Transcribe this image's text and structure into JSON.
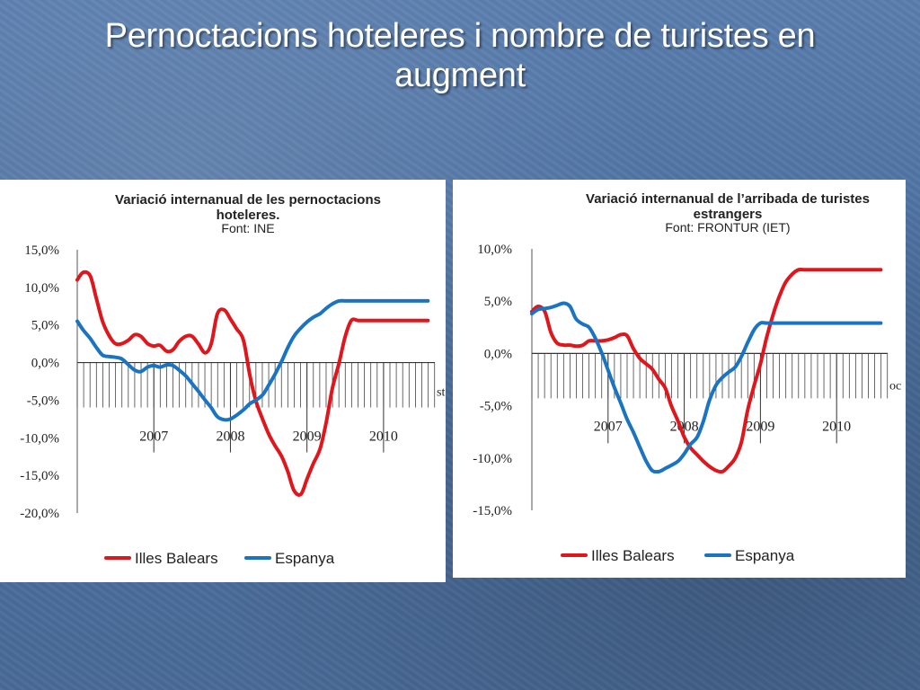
{
  "slide": {
    "title": "Pernoctacions  hoteleres i nombre de turistes en augment"
  },
  "colors": {
    "series_red": "#e0161d",
    "series_blue": "#1a74c2",
    "background": "#4c6f9f"
  },
  "chart_data": [
    {
      "type": "line",
      "title": "Variació internanual de les pernoctacions hoteleres.",
      "title_lines": [
        "Variació internanual de les pernoctacions",
        "hoteleres."
      ],
      "source": "Font: INE",
      "cut_label": "st",
      "ylim": [
        -20,
        15
      ],
      "yticks": [
        15,
        10,
        5,
        0,
        -5,
        -10,
        -15,
        -20
      ],
      "ytick_labels": [
        "15,0%",
        "10,0%",
        "5,0%",
        "0,0%",
        "-5,0%",
        "-10,0%",
        "-15,0%",
        "-20,0%"
      ],
      "xlim": [
        2006.0,
        2010.67
      ],
      "year_labels": [
        "2007",
        "2008",
        "2009",
        "2010"
      ],
      "grid": false,
      "legend": "bottom",
      "series": [
        {
          "name": "Illes Balears",
          "color": "#e0161d",
          "x": [
            2006.0,
            2006.08,
            2006.17,
            2006.25,
            2006.33,
            2006.42,
            2006.5,
            2006.58,
            2006.67,
            2006.75,
            2006.83,
            2006.92,
            2007.0,
            2007.08,
            2007.17,
            2007.25,
            2007.33,
            2007.42,
            2007.5,
            2007.58,
            2007.67,
            2007.75,
            2007.83,
            2007.92,
            2008.0,
            2008.08,
            2008.17,
            2008.25,
            2008.33,
            2008.42,
            2008.5,
            2008.58,
            2008.67,
            2008.75,
            2008.83,
            2008.92,
            2009.0,
            2009.08,
            2009.17,
            2009.25,
            2009.33,
            2009.42,
            2009.5,
            2009.58,
            2009.67,
            2009.75,
            2009.83,
            2009.92,
            2010.0,
            2010.08,
            2010.17,
            2010.25,
            2010.33,
            2010.42,
            2010.5,
            2010.58
          ],
          "values": [
            11,
            12,
            11.5,
            8.5,
            5.5,
            3.5,
            2.5,
            2.5,
            3.0,
            3.7,
            3.5,
            2.5,
            2.2,
            2.3,
            1.5,
            1.7,
            2.8,
            3.5,
            3.5,
            2.5,
            1.3,
            2.5,
            6.5,
            7.0,
            5.8,
            4.5,
            3.0,
            -1.5,
            -5.0,
            -7.5,
            -9.5,
            -11.0,
            -12.5,
            -14.5,
            -17.0,
            -17.5,
            -15.5,
            -13.5,
            -11.5,
            -8.0,
            -3.5,
            0.0,
            3.5,
            5.6,
            5.6,
            5.6,
            5.6,
            5.6,
            5.6,
            5.6,
            5.6,
            5.6,
            5.6,
            5.6,
            5.6,
            5.6
          ]
        },
        {
          "name": "Espanya",
          "color": "#1a74c2",
          "x": [
            2006.0,
            2006.08,
            2006.17,
            2006.25,
            2006.33,
            2006.42,
            2006.5,
            2006.58,
            2006.67,
            2006.75,
            2006.83,
            2006.92,
            2007.0,
            2007.08,
            2007.17,
            2007.25,
            2007.33,
            2007.42,
            2007.5,
            2007.58,
            2007.67,
            2007.75,
            2007.83,
            2007.92,
            2008.0,
            2008.08,
            2008.17,
            2008.25,
            2008.33,
            2008.42,
            2008.5,
            2008.58,
            2008.67,
            2008.75,
            2008.83,
            2008.92,
            2009.0,
            2009.08,
            2009.17,
            2009.25,
            2009.33,
            2009.42,
            2009.5,
            2009.58,
            2009.67,
            2009.75,
            2009.83,
            2009.92,
            2010.0,
            2010.08,
            2010.17,
            2010.25,
            2010.33,
            2010.42,
            2010.5,
            2010.58
          ],
          "values": [
            5.5,
            4.3,
            3.2,
            2.0,
            1.0,
            0.8,
            0.7,
            0.5,
            -0.3,
            -1.0,
            -1.2,
            -0.6,
            -0.4,
            -0.6,
            -0.3,
            -0.4,
            -1.0,
            -1.8,
            -2.8,
            -3.8,
            -5.0,
            -6.0,
            -7.2,
            -7.6,
            -7.5,
            -7.0,
            -6.3,
            -5.5,
            -5.0,
            -4.3,
            -3.0,
            -1.6,
            0.2,
            2.0,
            3.5,
            4.6,
            5.4,
            6.0,
            6.5,
            7.2,
            7.8,
            8.2,
            8.2,
            8.2,
            8.2,
            8.2,
            8.2,
            8.2,
            8.2,
            8.2,
            8.2,
            8.2,
            8.2,
            8.2,
            8.2,
            8.2
          ]
        }
      ]
    },
    {
      "type": "line",
      "title": "Variació internanual de l’arribada de turistes estrangers",
      "title_lines": [
        "Variació internanual de l’arribada de turistes",
        "estrangers"
      ],
      "source": "Font: FRONTUR (IET)",
      "cut_label": "oc",
      "ylim": [
        -15,
        10
      ],
      "yticks": [
        10,
        5,
        0,
        -5,
        -10,
        -15
      ],
      "ytick_labels": [
        "10,0%",
        "5,0%",
        "0,0%",
        "-5,0%",
        "-10,0%",
        "-15,0%"
      ],
      "xlim": [
        2006.0,
        2010.67
      ],
      "year_labels": [
        "2007",
        "2008",
        "2009",
        "2010"
      ],
      "grid": false,
      "legend": "bottom",
      "series": [
        {
          "name": "Illes Balears",
          "color": "#e0161d",
          "x": [
            2006.0,
            2006.08,
            2006.17,
            2006.25,
            2006.33,
            2006.42,
            2006.5,
            2006.58,
            2006.67,
            2006.75,
            2006.83,
            2006.92,
            2007.0,
            2007.08,
            2007.17,
            2007.25,
            2007.33,
            2007.42,
            2007.5,
            2007.58,
            2007.67,
            2007.75,
            2007.83,
            2007.92,
            2008.0,
            2008.08,
            2008.17,
            2008.25,
            2008.33,
            2008.42,
            2008.5,
            2008.58,
            2008.67,
            2008.75,
            2008.83,
            2008.92,
            2009.0,
            2009.08,
            2009.17,
            2009.25,
            2009.33,
            2009.42,
            2009.5,
            2009.58,
            2009.67,
            2009.75,
            2009.83,
            2009.92,
            2010.0,
            2010.08,
            2010.17,
            2010.25,
            2010.33,
            2010.42,
            2010.5,
            2010.58
          ],
          "values": [
            4.0,
            4.5,
            4.0,
            2.0,
            1.0,
            0.8,
            0.8,
            0.7,
            0.8,
            1.2,
            1.2,
            1.2,
            1.3,
            1.5,
            1.8,
            1.7,
            0.5,
            -0.5,
            -1.0,
            -1.5,
            -2.5,
            -3.3,
            -5.0,
            -6.5,
            -8.0,
            -9.0,
            -9.7,
            -10.3,
            -10.8,
            -11.2,
            -11.3,
            -10.8,
            -10.0,
            -8.5,
            -5.5,
            -3.0,
            -1.0,
            1.5,
            3.8,
            5.5,
            6.8,
            7.6,
            8.0,
            8.0,
            8.0,
            8.0,
            8.0,
            8.0,
            8.0,
            8.0,
            8.0,
            8.0,
            8.0,
            8.0,
            8.0,
            8.0
          ]
        },
        {
          "name": "Espanya",
          "color": "#1a74c2",
          "x": [
            2006.0,
            2006.08,
            2006.17,
            2006.25,
            2006.33,
            2006.42,
            2006.5,
            2006.58,
            2006.67,
            2006.75,
            2006.83,
            2006.92,
            2007.0,
            2007.08,
            2007.17,
            2007.25,
            2007.33,
            2007.42,
            2007.5,
            2007.58,
            2007.67,
            2007.75,
            2007.83,
            2007.92,
            2008.0,
            2008.08,
            2008.17,
            2008.25,
            2008.33,
            2008.42,
            2008.5,
            2008.58,
            2008.67,
            2008.75,
            2008.83,
            2008.92,
            2009.0,
            2009.08,
            2009.17,
            2009.25,
            2009.33,
            2009.42,
            2009.5,
            2009.58,
            2009.67,
            2009.75,
            2009.83,
            2009.92,
            2010.0,
            2010.08,
            2010.17,
            2010.25,
            2010.33,
            2010.42,
            2010.5,
            2010.58
          ],
          "values": [
            3.8,
            4.2,
            4.3,
            4.4,
            4.6,
            4.8,
            4.5,
            3.3,
            2.8,
            2.5,
            1.5,
            0.0,
            -1.6,
            -3.2,
            -4.8,
            -6.3,
            -7.5,
            -9.0,
            -10.3,
            -11.2,
            -11.3,
            -11.0,
            -10.7,
            -10.3,
            -9.6,
            -8.7,
            -8.0,
            -6.5,
            -4.5,
            -3.0,
            -2.3,
            -1.8,
            -1.3,
            -0.3,
            1.0,
            2.3,
            2.9,
            2.9,
            2.9,
            2.9,
            2.9,
            2.9,
            2.9,
            2.9,
            2.9,
            2.9,
            2.9,
            2.9,
            2.9,
            2.9,
            2.9,
            2.9,
            2.9,
            2.9,
            2.9,
            2.9
          ]
        }
      ]
    }
  ]
}
